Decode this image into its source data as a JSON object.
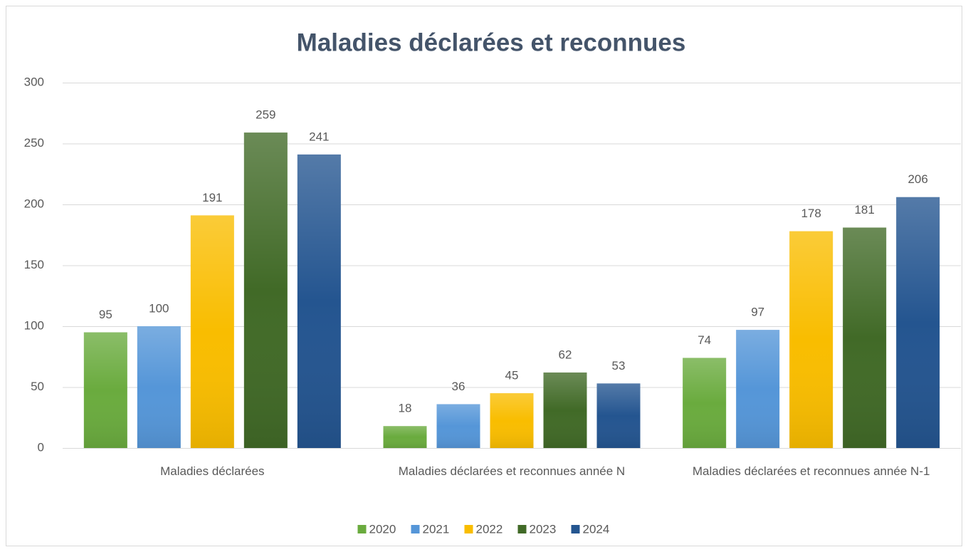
{
  "chart_data": {
    "type": "bar",
    "title": "Maladies déclarées et reconnues",
    "categories": [
      "Maladies déclarées",
      "Maladies déclarées et reconnues année N",
      "Maladies déclarées et reconnues année N-1"
    ],
    "series": [
      {
        "name": "2020",
        "color": "#6aab3e",
        "values": [
          95,
          18,
          74
        ]
      },
      {
        "name": "2021",
        "color": "#5596d8",
        "values": [
          100,
          36,
          97
        ]
      },
      {
        "name": "2022",
        "color": "#f9bd00",
        "values": [
          191,
          45,
          178
        ]
      },
      {
        "name": "2023",
        "color": "#416a27",
        "values": [
          259,
          62,
          181
        ]
      },
      {
        "name": "2024",
        "color": "#245590",
        "values": [
          241,
          53,
          206
        ]
      }
    ],
    "ylim": [
      0,
      300
    ],
    "yticks": [
      0,
      50,
      100,
      150,
      200,
      250,
      300
    ],
    "grid": true,
    "legend": "bottom"
  }
}
